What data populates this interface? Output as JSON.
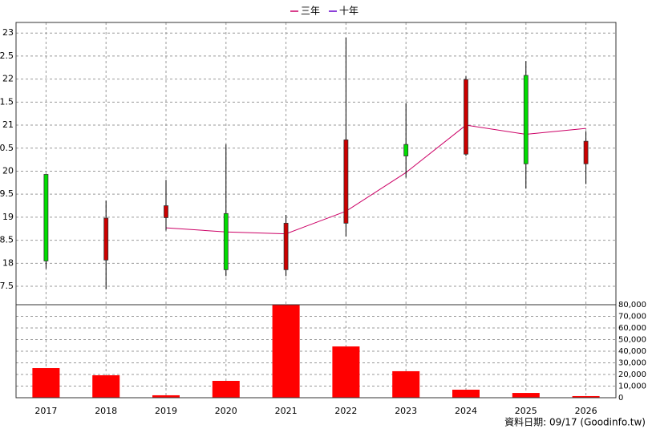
{
  "chart_data": {
    "type": "candlestick",
    "categories": [
      "2017",
      "2018",
      "2019",
      "2020",
      "2021",
      "2022",
      "2023",
      "2024",
      "2025",
      "2026"
    ],
    "open": [
      19.93,
      18.07,
      18.99,
      19.08,
      17.86,
      18.87,
      20.58,
      20.37,
      22.08,
      20.16
    ],
    "high": [
      19.93,
      19.36,
      19.81,
      20.58,
      19.05,
      22.9,
      21.48,
      22.06,
      22.39,
      20.87
    ],
    "low": [
      17.88,
      17.44,
      18.71,
      17.72,
      17.72,
      18.58,
      19.86,
      20.33,
      19.62,
      19.72
    ],
    "close": [
      18.05,
      18.98,
      19.25,
      17.86,
      18.87,
      20.68,
      20.33,
      21.99,
      20.16,
      20.65
    ],
    "up_color": "#cc0000",
    "down_color": "#00dd00",
    "series": [
      {
        "name": "三年",
        "color": "#cc0066",
        "values": [
          null,
          null,
          18.77,
          18.68,
          18.64,
          19.13,
          19.97,
          21.0,
          20.8,
          20.93
        ]
      },
      {
        "name": "十年",
        "color": "#6600cc",
        "values": [
          null,
          null,
          null,
          null,
          null,
          null,
          null,
          null,
          null,
          null
        ]
      }
    ],
    "ylim": [
      17.1,
      23.23
    ],
    "yticks": [
      23,
      {
        "value": 22.5,
        "label": "2.5"
      },
      22,
      {
        "value": 21.5,
        "label": "1.5"
      },
      21,
      {
        "value": 20.5,
        "label": "0.5"
      },
      20,
      {
        "value": 19.5,
        "label": "9.5"
      },
      19,
      {
        "value": 18.5,
        "label": "8.5"
      },
      18,
      {
        "value": 17.5,
        "label": "7.5"
      }
    ],
    "grid": true,
    "legend": "top",
    "volume": {
      "type": "bar",
      "color": "#ff0000",
      "values": [
        25500,
        19300,
        2100,
        14500,
        79900,
        44100,
        22800,
        6900,
        4100,
        1400
      ],
      "ylim": [
        0,
        80000
      ],
      "yticks": [
        {
          "value": 80000,
          "label": "80,000"
        },
        {
          "value": 70000,
          "label": "70,000"
        },
        {
          "value": 60000,
          "label": "60,000"
        },
        {
          "value": 50000,
          "label": "50,000"
        },
        {
          "value": 40000,
          "label": "40,000"
        },
        {
          "value": 30000,
          "label": "30,000"
        },
        {
          "value": 20000,
          "label": "20,000"
        },
        {
          "value": 10000,
          "label": "10,000"
        },
        0
      ]
    },
    "footer": "資料日期: 09/17  (Goodinfo.tw)"
  }
}
